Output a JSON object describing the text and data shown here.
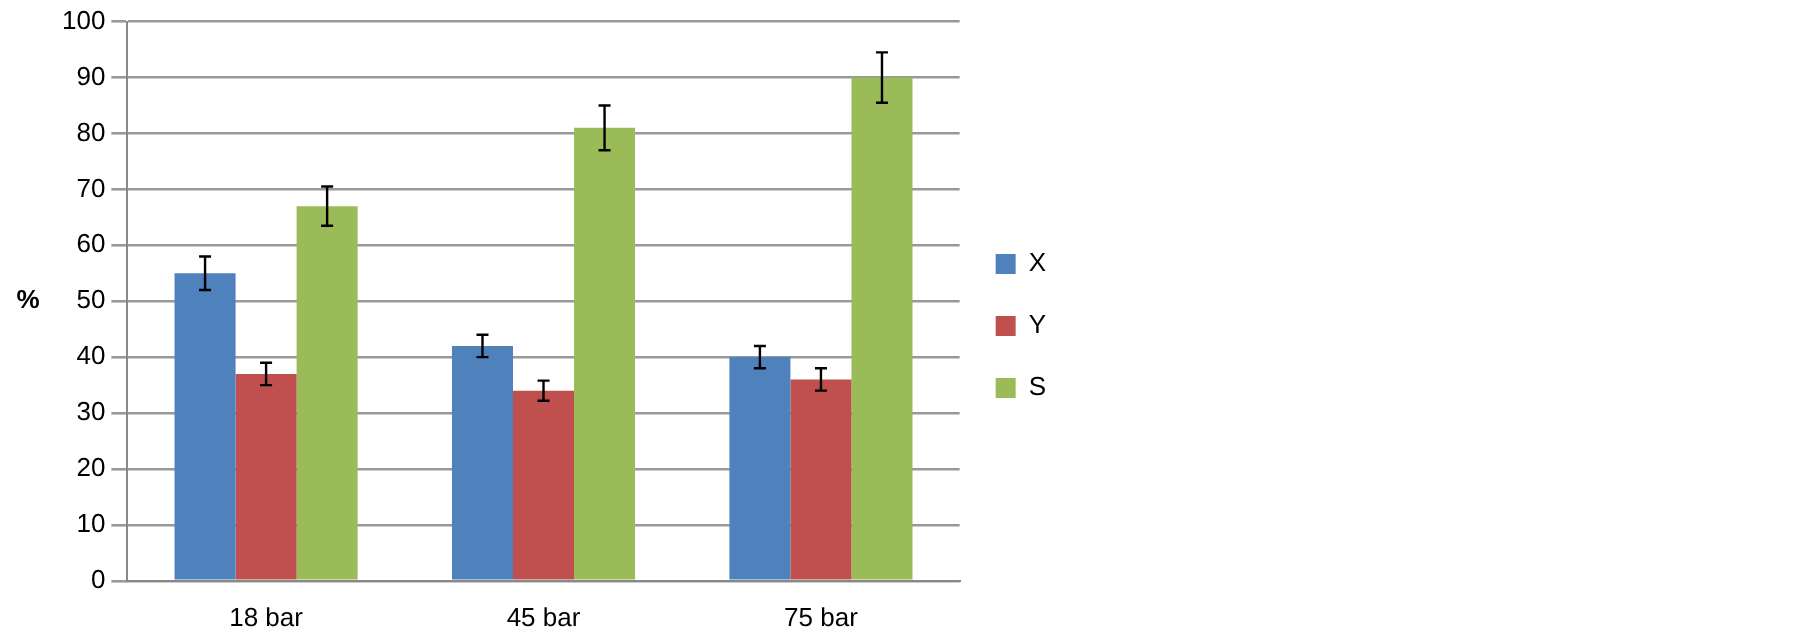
{
  "chart_data": {
    "type": "bar",
    "ylabel": "%",
    "categories": [
      "18 bar",
      "45 bar",
      "75 bar"
    ],
    "series": [
      {
        "name": "X",
        "color": "#4f81bd",
        "values": [
          55,
          42,
          40
        ],
        "errors": [
          3,
          2,
          2
        ]
      },
      {
        "name": "Y",
        "color": "#c0504d",
        "values": [
          37,
          34,
          36
        ],
        "errors": [
          2,
          1.8,
          2
        ]
      },
      {
        "name": "S",
        "color": "#9bbb59",
        "values": [
          67,
          81,
          90
        ],
        "errors": [
          3.5,
          4,
          4.5
        ]
      }
    ],
    "ylim": [
      0,
      100
    ],
    "yticks": [
      0,
      10,
      20,
      30,
      40,
      50,
      60,
      70,
      80,
      90,
      100
    ],
    "grid": "y",
    "legend": "right"
  }
}
